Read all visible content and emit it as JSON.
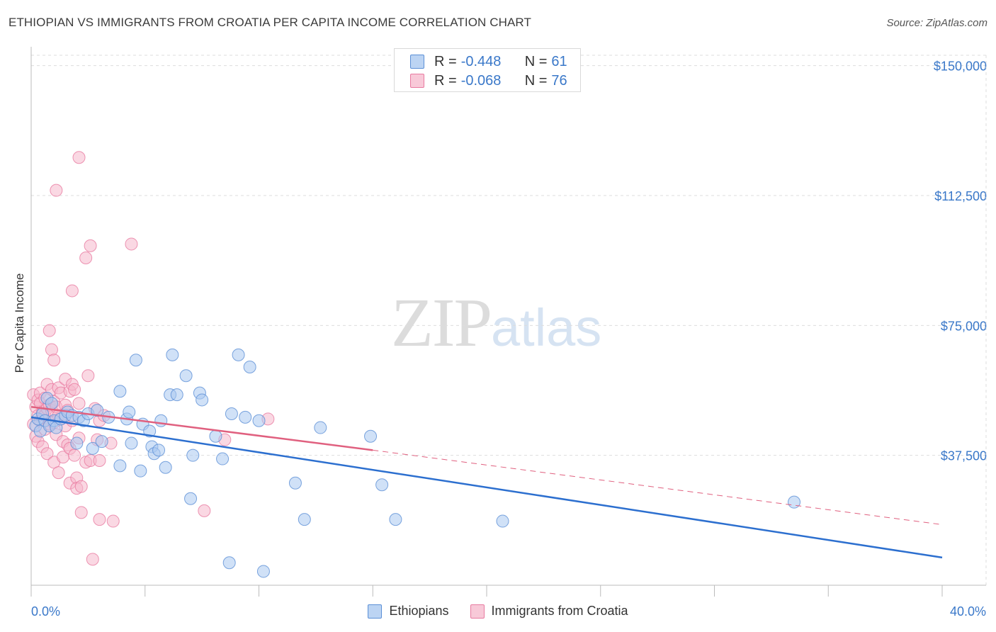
{
  "title": "ETHIOPIAN VS IMMIGRANTS FROM CROATIA PER CAPITA INCOME CORRELATION CHART",
  "source": "Source: ZipAtlas.com",
  "watermark": {
    "zip": "ZIP",
    "atlas": "atlas"
  },
  "legend_top": [
    {
      "r_label": "R =",
      "r_value": "-0.448",
      "n_label": "N =",
      "n_value": "61"
    },
    {
      "r_label": "R =",
      "r_value": "-0.068",
      "n_label": "N =",
      "n_value": "76"
    }
  ],
  "legend_bottom": [
    "Ethiopians",
    "Immigrants from Croatia"
  ],
  "colors": {
    "blue_fill": "#a9c9f0",
    "blue_stroke": "#5b8fd6",
    "blue_line": "#2c6fcf",
    "pink_fill": "#f6b8cc",
    "pink_stroke": "#e87aa0",
    "pink_line": "#e0607f",
    "tick_text": "#3a78c9",
    "grid": "#dddddd"
  },
  "chart_data": {
    "type": "scatter",
    "title": "ETHIOPIAN VS IMMIGRANTS FROM CROATIA PER CAPITA INCOME CORRELATION CHART",
    "xlabel": "",
    "ylabel": "Per Capita Income",
    "xlim": [
      0,
      40
    ],
    "ylim": [
      0,
      153000
    ],
    "x_tick_labels": [
      "0.0%",
      "40.0%"
    ],
    "y_ticks": [
      37500,
      75000,
      112500,
      150000
    ],
    "y_tick_labels": [
      "$37,500",
      "$75,000",
      "$112,500",
      "$150,000"
    ],
    "grid": true,
    "series": [
      {
        "name": "Ethiopians",
        "r": -0.448,
        "n": 61,
        "trend": {
          "x": [
            0,
            40
          ],
          "y": [
            48500,
            8000
          ],
          "dashed_to": 40
        },
        "points": [
          [
            0.2,
            46000
          ],
          [
            0.3,
            48000
          ],
          [
            0.4,
            44500
          ],
          [
            0.5,
            49500
          ],
          [
            0.6,
            47500
          ],
          [
            0.7,
            54000
          ],
          [
            0.8,
            46000
          ],
          [
            0.9,
            52500
          ],
          [
            1.0,
            47500
          ],
          [
            1.1,
            45500
          ],
          [
            1.3,
            48000
          ],
          [
            1.5,
            49000
          ],
          [
            1.6,
            50000
          ],
          [
            1.8,
            49000
          ],
          [
            2.0,
            41000
          ],
          [
            2.1,
            48500
          ],
          [
            2.3,
            47500
          ],
          [
            2.5,
            49500
          ],
          [
            2.7,
            39500
          ],
          [
            2.9,
            50500
          ],
          [
            3.1,
            41500
          ],
          [
            3.4,
            48500
          ],
          [
            3.9,
            56000
          ],
          [
            3.9,
            34500
          ],
          [
            4.2,
            48000
          ],
          [
            4.3,
            50000
          ],
          [
            4.4,
            41000
          ],
          [
            4.6,
            65000
          ],
          [
            4.8,
            33000
          ],
          [
            4.9,
            46500
          ],
          [
            5.2,
            44500
          ],
          [
            5.3,
            40000
          ],
          [
            5.4,
            38000
          ],
          [
            5.6,
            39000
          ],
          [
            5.7,
            47500
          ],
          [
            5.9,
            34000
          ],
          [
            6.1,
            55000
          ],
          [
            6.2,
            66500
          ],
          [
            6.4,
            55000
          ],
          [
            6.8,
            60500
          ],
          [
            7.0,
            25000
          ],
          [
            7.1,
            37500
          ],
          [
            7.4,
            55500
          ],
          [
            7.5,
            53500
          ],
          [
            8.1,
            43000
          ],
          [
            8.4,
            36500
          ],
          [
            8.7,
            6500
          ],
          [
            8.8,
            49500
          ],
          [
            9.1,
            66500
          ],
          [
            9.4,
            48500
          ],
          [
            9.6,
            63000
          ],
          [
            10.0,
            47500
          ],
          [
            10.2,
            4000
          ],
          [
            11.6,
            29500
          ],
          [
            12.0,
            19000
          ],
          [
            12.7,
            45500
          ],
          [
            14.9,
            43000
          ],
          [
            15.4,
            29000
          ],
          [
            16.0,
            19000
          ],
          [
            20.7,
            18500
          ],
          [
            33.5,
            24000
          ]
        ]
      },
      {
        "name": "Immigrants from Croatia",
        "r": -0.068,
        "n": 76,
        "trend": {
          "x": [
            0,
            15.0
          ],
          "y": [
            51500,
            39000
          ],
          "dashed_x": [
            15.0,
            40
          ],
          "dashed_y": [
            39000,
            17500
          ]
        },
        "points": [
          [
            0.1,
            55000
          ],
          [
            0.1,
            46500
          ],
          [
            0.2,
            51500
          ],
          [
            0.2,
            43000
          ],
          [
            0.3,
            53500
          ],
          [
            0.3,
            49000
          ],
          [
            0.3,
            41500
          ],
          [
            0.4,
            55500
          ],
          [
            0.4,
            52500
          ],
          [
            0.4,
            47500
          ],
          [
            0.5,
            50000
          ],
          [
            0.5,
            40000
          ],
          [
            0.6,
            54000
          ],
          [
            0.6,
            49000
          ],
          [
            0.6,
            45000
          ],
          [
            0.7,
            58000
          ],
          [
            0.7,
            51000
          ],
          [
            0.7,
            38000
          ],
          [
            0.8,
            73500
          ],
          [
            0.8,
            52000
          ],
          [
            0.8,
            46500
          ],
          [
            0.9,
            68000
          ],
          [
            0.9,
            56500
          ],
          [
            0.9,
            50500
          ],
          [
            1.0,
            65000
          ],
          [
            1.0,
            53000
          ],
          [
            1.0,
            47000
          ],
          [
            1.0,
            35500
          ],
          [
            1.1,
            114000
          ],
          [
            1.1,
            51500
          ],
          [
            1.1,
            43500
          ],
          [
            1.2,
            57000
          ],
          [
            1.2,
            49000
          ],
          [
            1.2,
            32500
          ],
          [
            1.3,
            55500
          ],
          [
            1.3,
            48000
          ],
          [
            1.4,
            41500
          ],
          [
            1.4,
            37000
          ],
          [
            1.5,
            59500
          ],
          [
            1.5,
            52000
          ],
          [
            1.5,
            46000
          ],
          [
            1.6,
            50500
          ],
          [
            1.6,
            40500
          ],
          [
            1.7,
            56000
          ],
          [
            1.7,
            39500
          ],
          [
            1.7,
            29500
          ],
          [
            1.8,
            85000
          ],
          [
            1.8,
            58000
          ],
          [
            1.8,
            47500
          ],
          [
            1.9,
            56500
          ],
          [
            1.9,
            37500
          ],
          [
            2.0,
            31000
          ],
          [
            2.0,
            28000
          ],
          [
            2.1,
            123500
          ],
          [
            2.1,
            52500
          ],
          [
            2.1,
            42500
          ],
          [
            2.2,
            21000
          ],
          [
            2.2,
            28500
          ],
          [
            2.4,
            94500
          ],
          [
            2.4,
            35500
          ],
          [
            2.5,
            60500
          ],
          [
            2.6,
            98000
          ],
          [
            2.6,
            36000
          ],
          [
            2.7,
            7500
          ],
          [
            2.8,
            51000
          ],
          [
            2.9,
            42000
          ],
          [
            3.0,
            36000
          ],
          [
            3.0,
            47500
          ],
          [
            3.2,
            49000
          ],
          [
            3.0,
            19000
          ],
          [
            3.5,
            41000
          ],
          [
            3.6,
            18500
          ],
          [
            4.4,
            98500
          ],
          [
            7.6,
            21500
          ],
          [
            8.5,
            42000
          ],
          [
            10.4,
            48000
          ]
        ]
      }
    ]
  }
}
